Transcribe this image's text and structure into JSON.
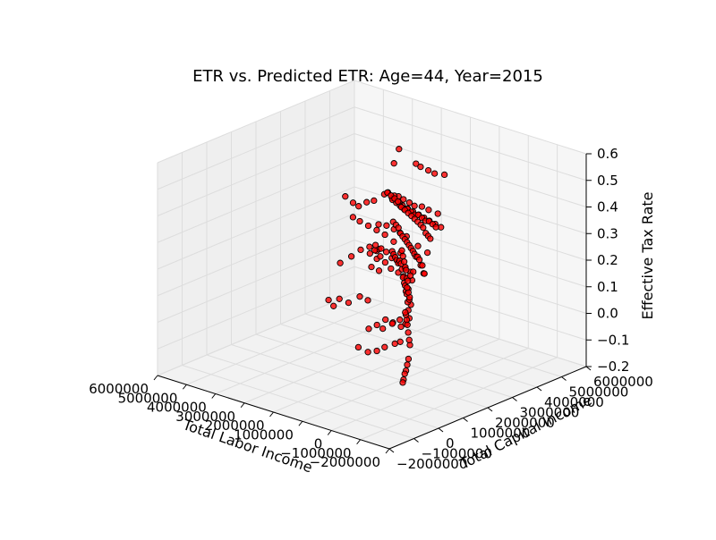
{
  "chart_data": {
    "type": "scatter",
    "projection": "3d",
    "title": "ETR vs. Predicted ETR: Age=44, Year=2015",
    "xlabel": "Total Labor Income",
    "ylabel": "Total Capital Income",
    "zlabel": "Effective Tax Rate",
    "xticks": [
      "−2000000",
      "−1000000",
      "0",
      "1000000",
      "2000000",
      "3000000",
      "4000000",
      "5000000",
      "6000000"
    ],
    "yticks": [
      "−2000000",
      "−1000000",
      "0",
      "1000000",
      "2000000",
      "3000000",
      "4000000",
      "5000000",
      "6000000"
    ],
    "zticks": [
      "−0.2",
      "−0.1",
      "0.0",
      "0.1",
      "0.2",
      "0.3",
      "0.4",
      "0.5",
      "0.6"
    ],
    "xlim": [
      -2000000,
      6000000
    ],
    "ylim": [
      -2000000,
      6000000
    ],
    "zlim": [
      -0.2,
      0.6
    ],
    "grid": true,
    "marker_color": "#ff0000",
    "marker_edge": "#000000",
    "points": [
      [
        -27000,
        1100000,
        -0.05
      ],
      [
        -27000,
        1050000,
        -0.07
      ],
      [
        -27000,
        1000000,
        -0.09
      ],
      [
        -27000,
        950000,
        -0.1
      ],
      [
        -27000,
        900000,
        -0.12
      ],
      [
        -27000,
        870000,
        -0.13
      ],
      [
        -26000,
        1160000,
        0.0
      ],
      [
        -26000,
        1130000,
        0.02
      ],
      [
        -26000,
        1090000,
        0.05
      ],
      [
        -26000,
        1060000,
        0.08
      ],
      [
        -26000,
        1030000,
        0.1
      ],
      [
        -26000,
        1000000,
        0.12
      ],
      [
        -26000,
        970000,
        0.13
      ],
      [
        -25000,
        1200000,
        0.15
      ],
      [
        -25000,
        1150000,
        0.18
      ],
      [
        -25000,
        1100000,
        0.2
      ],
      [
        -25000,
        1050000,
        0.22
      ],
      [
        -24000,
        1250000,
        0.24
      ],
      [
        -24000,
        1180000,
        0.26
      ],
      [
        -23000,
        1300000,
        0.27
      ],
      [
        -6000,
        1160000,
        0.17
      ],
      [
        11000,
        1140000,
        0.21
      ],
      [
        29000,
        1140000,
        0.24
      ],
      [
        49000,
        1130000,
        0.25
      ],
      [
        68000,
        1120000,
        0.28
      ],
      [
        98000,
        1120000,
        0.29
      ],
      [
        130000,
        1110000,
        0.31
      ],
      [
        163000,
        1100000,
        0.33
      ],
      [
        200000,
        1100000,
        0.35
      ],
      [
        234000,
        1090000,
        0.34
      ],
      [
        -6000,
        1160000,
        0.1
      ],
      [
        13000,
        1140000,
        0.13
      ],
      [
        34000,
        1140000,
        0.16
      ],
      [
        56000,
        1130000,
        0.19
      ],
      [
        79000,
        1120000,
        0.2
      ],
      [
        102000,
        1120000,
        0.22
      ],
      [
        127000,
        1110000,
        0.23
      ],
      [
        160000,
        1100000,
        0.25
      ],
      [
        190000,
        1090000,
        0.28
      ],
      [
        222000,
        1090000,
        0.3
      ],
      [
        262000,
        1080000,
        0.31
      ],
      [
        299000,
        1070000,
        0.3
      ],
      [
        343000,
        1060000,
        0.31
      ],
      [
        388000,
        1050000,
        0.32
      ],
      [
        433000,
        1040000,
        0.33
      ],
      [
        475000,
        1030000,
        0.34
      ],
      [
        43000,
        1830000,
        0.24
      ],
      [
        69000,
        1830000,
        0.24
      ],
      [
        97000,
        1810000,
        0.27
      ],
      [
        134000,
        1790000,
        0.27
      ],
      [
        172000,
        1780000,
        0.29
      ],
      [
        214000,
        1760000,
        0.3
      ],
      [
        252000,
        1740000,
        0.3
      ],
      [
        295000,
        1720000,
        0.31
      ],
      [
        339000,
        1710000,
        0.32
      ],
      [
        388000,
        1690000,
        0.33
      ],
      [
        438000,
        1670000,
        0.34
      ],
      [
        490000,
        1650000,
        0.35
      ],
      [
        545000,
        1630000,
        0.36
      ],
      [
        599000,
        1600000,
        0.37
      ],
      [
        654000,
        1580000,
        0.38
      ],
      [
        710000,
        1560000,
        0.4
      ],
      [
        771000,
        1530000,
        0.41
      ],
      [
        839000,
        1500000,
        0.42
      ],
      [
        196000,
        2250000,
        0.35
      ],
      [
        244000,
        2220000,
        0.36
      ],
      [
        294000,
        2180000,
        0.37
      ],
      [
        358000,
        2150000,
        0.39
      ],
      [
        414000,
        2120000,
        0.4
      ],
      [
        488000,
        2080000,
        0.41
      ],
      [
        558000,
        2040000,
        0.42
      ],
      [
        632000,
        2000000,
        0.43
      ],
      [
        713000,
        1960000,
        0.44
      ],
      [
        795000,
        1920000,
        0.45
      ],
      [
        873000,
        1870000,
        0.46
      ],
      [
        955000,
        1830000,
        0.48
      ],
      [
        1038000,
        1790000,
        0.49
      ],
      [
        1121000,
        1740000,
        0.5
      ],
      [
        1202000,
        1690000,
        0.51
      ],
      [
        503000,
        2840000,
        0.36
      ],
      [
        585000,
        2800000,
        0.37
      ],
      [
        667000,
        2750000,
        0.38
      ],
      [
        751000,
        2710000,
        0.38
      ],
      [
        839000,
        2670000,
        0.39
      ],
      [
        928000,
        2620000,
        0.4
      ],
      [
        1013000,
        2570000,
        0.4
      ],
      [
        1085000,
        2520000,
        0.41
      ],
      [
        1169000,
        2470000,
        0.42
      ],
      [
        1251000,
        2420000,
        0.42
      ],
      [
        1340000,
        2370000,
        0.43
      ],
      [
        1430000,
        2320000,
        0.44
      ],
      [
        1516000,
        2270000,
        0.45
      ],
      [
        899000,
        3510000,
        0.32
      ],
      [
        1037000,
        3440000,
        0.33
      ],
      [
        1182000,
        3370000,
        0.34
      ],
      [
        1302000,
        3300000,
        0.35
      ],
      [
        1429000,
        3230000,
        0.36
      ],
      [
        1555000,
        3150000,
        0.37
      ],
      [
        1683000,
        3080000,
        0.38
      ],
      [
        1796000,
        3010000,
        0.39
      ],
      [
        1870000,
        2960000,
        0.4
      ],
      [
        1474000,
        4060000,
        0.33
      ],
      [
        1707000,
        3960000,
        0.34
      ],
      [
        1870000,
        3880000,
        0.35
      ],
      [
        2050000,
        3790000,
        0.35
      ],
      [
        2176000,
        3730000,
        0.36
      ],
      [
        2321000,
        3660000,
        0.37
      ],
      [
        2546000,
        3560000,
        0.38
      ],
      [
        2700000,
        3480000,
        0.39
      ],
      [
        2051000,
        5010000,
        0.42
      ],
      [
        2298000,
        4900000,
        0.42
      ],
      [
        2447000,
        4820000,
        0.43
      ],
      [
        2640000,
        4730000,
        0.44
      ],
      [
        2755000,
        4680000,
        0.45
      ],
      [
        1219000,
        3340000,
        0.22
      ],
      [
        1470000,
        3250000,
        0.24
      ],
      [
        1769000,
        3140000,
        0.27
      ],
      [
        1949000,
        3080000,
        0.28
      ],
      [
        2104000,
        3020000,
        0.29
      ],
      [
        2300000,
        2950000,
        0.3
      ],
      [
        2508000,
        2870000,
        0.3
      ],
      [
        1580000,
        2800000,
        0.14
      ],
      [
        1735000,
        2760000,
        0.15
      ],
      [
        1938000,
        2700000,
        0.16
      ],
      [
        2092000,
        2650000,
        0.18
      ],
      [
        2220000,
        2600000,
        0.2
      ],
      [
        2369000,
        2550000,
        0.22
      ],
      [
        2505000,
        2500000,
        0.23
      ],
      [
        1033000,
        2420000,
        0.19
      ],
      [
        1185000,
        2380000,
        0.2
      ],
      [
        1375000,
        2330000,
        0.22
      ],
      [
        1545000,
        2270000,
        0.23
      ],
      [
        1689000,
        2220000,
        0.25
      ],
      [
        1823000,
        2170000,
        0.26
      ],
      [
        1975000,
        2120000,
        0.27
      ],
      [
        3062000,
        4330000,
        0.33
      ],
      [
        3231000,
        4270000,
        0.32
      ],
      [
        3438000,
        4200000,
        0.33
      ],
      [
        3720000,
        4110000,
        0.3
      ],
      [
        3911000,
        4040000,
        0.29
      ],
      [
        4132000,
        3970000,
        0.27
      ],
      [
        4280000,
        3920000,
        0.28
      ],
      [
        4481000,
        3840000,
        0.3
      ],
      [
        2711000,
        3120000,
        0.19
      ],
      [
        2935000,
        3020000,
        0.17
      ],
      [
        3169000,
        2920000,
        0.18
      ],
      [
        3413000,
        2830000,
        0.15
      ],
      [
        3698000,
        2710000,
        0.12
      ],
      [
        2030000,
        1870000,
        0.07
      ],
      [
        2238000,
        1790000,
        0.08
      ],
      [
        2544000,
        1690000,
        0.05
      ],
      [
        2780000,
        1600000,
        0.06
      ],
      [
        2932000,
        1540000,
        0.03
      ],
      [
        3061000,
        1490000,
        0.05
      ],
      [
        512000,
        1430000,
        0.04
      ],
      [
        739000,
        1370000,
        0.05
      ],
      [
        1029000,
        1300000,
        0.02
      ],
      [
        1186000,
        1250000,
        0.03
      ],
      [
        1419000,
        1190000,
        0.01
      ],
      [
        317000,
        1170000,
        0.0
      ],
      [
        458000,
        1120000,
        -0.01
      ],
      [
        743000,
        1040000,
        -0.03
      ],
      [
        970000,
        990000,
        -0.05
      ],
      [
        1217000,
        920000,
        -0.06
      ],
      [
        1507000,
        870000,
        -0.05
      ],
      [
        182000,
        1230000,
        0.07
      ],
      [
        358000,
        1200000,
        0.08
      ],
      [
        575000,
        1150000,
        0.06
      ],
      [
        775000,
        1110000,
        0.07
      ],
      [
        3900000,
        5340000,
        0.44
      ],
      [
        3700000,
        4900000,
        0.41
      ],
      [
        3300000,
        3720000,
        0.14
      ],
      [
        3050000,
        3440000,
        0.13
      ],
      [
        2900000,
        3040000,
        0.12
      ],
      [
        2450000,
        2820000,
        0.13
      ],
      [
        1400000,
        2180000,
        0.3
      ],
      [
        1650000,
        2120000,
        0.32
      ],
      [
        1900000,
        2080000,
        0.33
      ],
      [
        2150000,
        2030000,
        0.34
      ],
      [
        2400000,
        1980000,
        0.35
      ],
      [
        2600000,
        1940000,
        0.36
      ]
    ]
  }
}
